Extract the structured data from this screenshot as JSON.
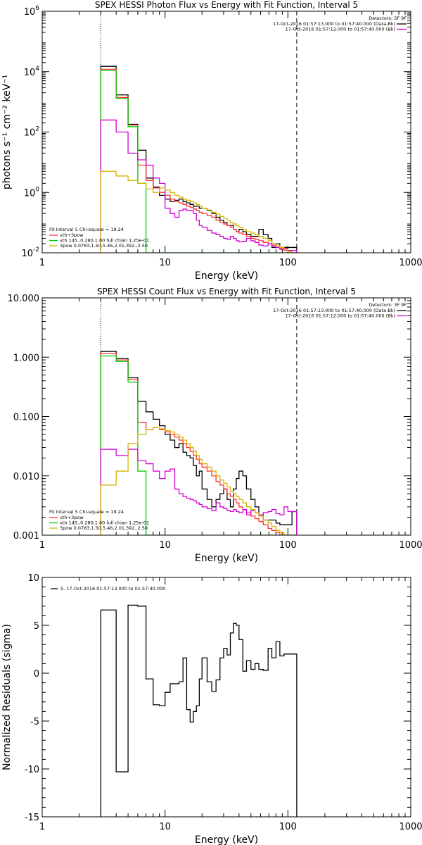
{
  "colors": {
    "black": "#000000",
    "red": "#ff3333",
    "green": "#00cc00",
    "magenta": "#d400d4",
    "yellow": "#d4b400"
  },
  "chart_data": [
    {
      "type": "line",
      "title": "SPEX HESSI Photon Flux vs Energy with Fit Function, Interval 5",
      "xlabel": "Energy (keV)",
      "ylabel": "photons s⁻¹ cm⁻² keV⁻¹",
      "xscale": "log",
      "yscale": "log",
      "xlim": [
        1,
        1000
      ],
      "ylim": [
        0.01,
        1000000
      ],
      "xticks": [
        "1",
        "10",
        "100",
        "1000"
      ],
      "yticks": [
        {
          "v": 0.01,
          "b": "10",
          "e": "-2"
        },
        {
          "v": 1,
          "b": "10",
          "e": "0"
        },
        {
          "v": 100,
          "b": "10",
          "e": "2"
        },
        {
          "v": 10000,
          "b": "10",
          "e": "4"
        },
        {
          "v": 1000000,
          "b": "10",
          "e": "6"
        }
      ],
      "vlines": [
        {
          "x": 3,
          "style": "dotted"
        },
        {
          "x": 118,
          "style": "dashed"
        }
      ],
      "legend_topright": {
        "title": "Detectors: 3F 9F",
        "rows": [
          {
            "text": "17-Oct-2016 01:57:13.000 to 01:57:40.000 (Data-Bk)",
            "color": "black"
          },
          {
            "text": "17-Oct-2016 01:57:12.000 to 01:57:40.000 (Bk)",
            "color": "magenta"
          }
        ]
      },
      "legend_bottomleft": {
        "title": "Fit Interval 5   Chi-square = 19.24",
        "rows": [
          {
            "text": "vth+3pow",
            "color": "red"
          },
          {
            "text": "vth 145.,0.280,1.00  full chian 1.25e-01",
            "color": "green"
          },
          {
            "text": "3pow 0.0783,1.50,5.46,2.01,392.,2.50",
            "color": "yellow"
          }
        ]
      },
      "edges": [
        3,
        4,
        5,
        6,
        7,
        8,
        9,
        10,
        11,
        12,
        13,
        14,
        15,
        16,
        17,
        18,
        19,
        20,
        22,
        24,
        26,
        28,
        30,
        32,
        34,
        36,
        38,
        40,
        43,
        46,
        50,
        54,
        58,
        63,
        69,
        74,
        80,
        86,
        93,
        100,
        108,
        118
      ],
      "series": [
        {
          "name": "Data-Bk",
          "color": "black",
          "values": [
            15000,
            1700,
            180,
            25,
            3.0,
            1.5,
            0.8,
            0.6,
            0.5,
            0.55,
            0.6,
            0.5,
            0.45,
            0.4,
            0.35,
            0.35,
            0.3,
            0.3,
            0.25,
            0.2,
            0.15,
            0.12,
            0.1,
            0.08,
            0.08,
            0.06,
            0.05,
            0.06,
            0.05,
            0.04,
            0.035,
            0.035,
            0.06,
            0.04,
            0.03,
            0.015,
            0.02,
            0.015,
            0.015,
            0.015,
            0.015
          ]
        },
        {
          "name": "vth+3pow",
          "color": "red",
          "values": [
            12000,
            1400,
            170,
            8,
            2.5,
            1.4,
            1.0,
            0.8,
            0.6,
            0.5,
            0.45,
            0.4,
            0.35,
            0.32,
            0.28,
            0.25,
            0.22,
            0.2,
            0.17,
            0.15,
            0.12,
            0.1,
            0.09,
            0.08,
            0.07,
            0.06,
            0.05,
            0.045,
            0.04,
            0.035,
            0.03,
            0.028,
            0.025,
            0.022,
            0.02,
            0.018,
            0.015,
            0.014,
            0.012,
            0.011,
            0.01
          ]
        },
        {
          "name": "vth",
          "color": "green",
          "values": [
            11000,
            1300,
            150,
            2.0,
            0.01,
            0.01,
            0.01,
            0.01,
            0.01,
            0.01,
            0.01,
            0.01,
            0.01,
            0.01,
            0.01,
            0.01,
            0.01,
            0.01,
            0.01,
            0.01,
            0.01,
            0.01,
            0.01,
            0.01,
            0.01,
            0.01,
            0.01,
            0.01,
            0.01,
            0.01,
            0.01,
            0.01,
            0.01,
            0.01,
            0.01,
            0.01,
            0.01,
            0.01,
            0.01,
            0.01,
            0.01
          ]
        },
        {
          "name": "Bk",
          "color": "magenta",
          "values": [
            250,
            100,
            20,
            12,
            8,
            3,
            2,
            0.3,
            0.2,
            0.15,
            0.25,
            0.28,
            0.25,
            0.25,
            0.2,
            0.12,
            0.08,
            0.07,
            0.055,
            0.045,
            0.04,
            0.035,
            0.03,
            0.028,
            0.035,
            0.03,
            0.025,
            0.023,
            0.024,
            0.03,
            0.025,
            0.022,
            0.018,
            0.017,
            0.02,
            0.016,
            0.015,
            0.013,
            0.014,
            0.012,
            0.012
          ]
        },
        {
          "name": "3pow",
          "color": "yellow",
          "values": [
            5,
            3.5,
            2.5,
            2.0,
            1.3,
            1.0,
            1.4,
            1.2,
            1.0,
            0.8,
            0.7,
            0.6,
            0.55,
            0.5,
            0.45,
            0.4,
            0.35,
            0.3,
            0.26,
            0.22,
            0.19,
            0.16,
            0.14,
            0.12,
            0.1,
            0.09,
            0.08,
            0.07,
            0.06,
            0.05,
            0.045,
            0.04,
            0.035,
            0.03,
            0.025,
            0.02,
            0.017,
            0.015,
            0.013,
            0.011,
            0.01
          ]
        }
      ]
    },
    {
      "type": "line",
      "title": "SPEX HESSI Count Flux vs Energy with Fit Function, Interval 5",
      "xlabel": "Energy (keV)",
      "ylabel": "",
      "xscale": "log",
      "yscale": "log",
      "xlim": [
        1,
        1000
      ],
      "ylim": [
        0.001,
        10
      ],
      "xticks": [
        "1",
        "10",
        "100",
        "1000"
      ],
      "yticks": [
        {
          "v": 0.001,
          "t": "0.001"
        },
        {
          "v": 0.01,
          "t": "0.010"
        },
        {
          "v": 0.1,
          "t": "0.100"
        },
        {
          "v": 1,
          "t": "1.000"
        },
        {
          "v": 10,
          "t": "10.000"
        }
      ],
      "vlines": [
        {
          "x": 3,
          "style": "dotted"
        },
        {
          "x": 118,
          "style": "dashed"
        }
      ],
      "legend_topright": {
        "title": "Detectors: 3F 9F",
        "rows": [
          {
            "text": "17-Oct-2016 01:57:13.000 to 01:57:40.000 (Data-Bk)",
            "color": "black"
          },
          {
            "text": "17-Oct-2016 01:57:12.000 to 01:57:40.000 (Bk)",
            "color": "magenta"
          }
        ]
      },
      "legend_bottomleft": {
        "title": "Fit Interval 5   Chi-square = 19.24",
        "rows": [
          {
            "text": "vth+3pow",
            "color": "red"
          },
          {
            "text": "vth 145.,0.280,1.00  full chian 1.25e-01",
            "color": "green"
          },
          {
            "text": "3pow 0.0783,1.50,5.46,2.01,392.,2.50",
            "color": "yellow"
          }
        ]
      },
      "edges": [
        3,
        4,
        5,
        6,
        7,
        8,
        9,
        10,
        11,
        12,
        13,
        14,
        15,
        16,
        17,
        18,
        19,
        20,
        22,
        24,
        26,
        28,
        30,
        32,
        34,
        36,
        38,
        40,
        43,
        46,
        50,
        54,
        58,
        63,
        69,
        74,
        80,
        86,
        93,
        100,
        108,
        118
      ],
      "series": [
        {
          "name": "Data-Bk",
          "color": "black",
          "values": [
            1.25,
            0.95,
            0.45,
            0.18,
            0.12,
            0.09,
            0.07,
            0.05,
            0.04,
            0.03,
            0.035,
            0.025,
            0.022,
            0.02,
            0.015,
            0.01,
            0.012,
            0.006,
            0.004,
            0.003,
            0.004,
            0.005,
            0.006,
            0.004,
            0.003,
            0.006,
            0.009,
            0.012,
            0.01,
            0.006,
            0.004,
            0.003,
            0.0022,
            0.0018,
            0.0018,
            0.0018,
            0.0016,
            0.0015,
            0.0015,
            0.0015,
            0.0025
          ]
        },
        {
          "name": "vth+3pow",
          "color": "red",
          "values": [
            1.15,
            0.9,
            0.42,
            0.08,
            0.06,
            0.065,
            0.06,
            0.055,
            0.05,
            0.045,
            0.04,
            0.035,
            0.03,
            0.026,
            0.022,
            0.019,
            0.016,
            0.014,
            0.012,
            0.01,
            0.008,
            0.007,
            0.006,
            0.005,
            0.0045,
            0.004,
            0.0035,
            0.003,
            0.0027,
            0.0024,
            0.0021,
            0.0019,
            0.0017,
            0.0015,
            0.0013,
            0.0012,
            0.0011,
            0.001,
            0.001,
            0.001,
            0.001
          ]
        },
        {
          "name": "vth",
          "color": "green",
          "values": [
            1.05,
            0.85,
            0.38,
            0.012,
            0.001,
            0.001,
            0.001,
            0.001,
            0.001,
            0.001,
            0.001,
            0.001,
            0.001,
            0.001,
            0.001,
            0.001,
            0.001,
            0.001,
            0.001,
            0.001,
            0.001,
            0.001,
            0.001,
            0.001,
            0.001,
            0.001,
            0.001,
            0.001,
            0.001,
            0.001,
            0.001,
            0.001,
            0.001,
            0.001,
            0.001,
            0.001,
            0.001,
            0.001,
            0.001,
            0.001,
            0.001
          ]
        },
        {
          "name": "Bk",
          "color": "magenta",
          "values": [
            0.028,
            0.022,
            0.028,
            0.018,
            0.016,
            0.012,
            0.009,
            0.012,
            0.013,
            0.006,
            0.005,
            0.0045,
            0.0042,
            0.004,
            0.0038,
            0.0035,
            0.0033,
            0.003,
            0.0028,
            0.0026,
            0.0035,
            0.003,
            0.0028,
            0.0026,
            0.0025,
            0.0027,
            0.0025,
            0.0024,
            0.0027,
            0.0022,
            0.0026,
            0.0024,
            0.0022,
            0.0024,
            0.0025,
            0.0027,
            0.0023,
            0.0022,
            0.003,
            0.0025,
            0.0025
          ]
        },
        {
          "name": "3pow",
          "color": "yellow",
          "values": [
            0.007,
            0.012,
            0.035,
            0.05,
            0.06,
            0.065,
            0.062,
            0.058,
            0.055,
            0.05,
            0.045,
            0.04,
            0.035,
            0.03,
            0.026,
            0.022,
            0.019,
            0.016,
            0.014,
            0.012,
            0.01,
            0.0085,
            0.0075,
            0.0065,
            0.0055,
            0.005,
            0.0045,
            0.004,
            0.0035,
            0.003,
            0.0027,
            0.0024,
            0.0021,
            0.0018,
            0.0016,
            0.0014,
            0.0012,
            0.0011,
            0.001,
            0.001,
            0.001
          ]
        }
      ]
    },
    {
      "type": "line",
      "title": "",
      "xlabel": "Energy (keV)",
      "ylabel": "Normalized Residuals (sigma)",
      "xscale": "log",
      "yscale": "linear",
      "xlim": [
        1,
        1000
      ],
      "ylim": [
        -15,
        10
      ],
      "xticks": [
        "1",
        "10",
        "100",
        "1000"
      ],
      "yticks": [
        {
          "v": -15,
          "t": "-15"
        },
        {
          "v": -10,
          "t": "-10"
        },
        {
          "v": -5,
          "t": "-5"
        },
        {
          "v": 0,
          "t": "0"
        },
        {
          "v": 5,
          "t": "5"
        },
        {
          "v": 10,
          "t": "10"
        }
      ],
      "legend_topleft": {
        "rows": [
          {
            "text": "5. 17-Oct-2016 01:57:13.000 to 01:57:40.000",
            "color": "black"
          }
        ]
      },
      "edges": [
        3,
        4,
        5,
        6,
        7,
        8,
        9,
        10,
        11,
        12,
        13,
        14,
        15,
        16,
        17,
        18,
        19,
        20,
        22,
        24,
        26,
        28,
        30,
        32,
        34,
        36,
        38,
        40,
        43,
        46,
        50,
        54,
        58,
        63,
        69,
        74,
        80,
        86,
        93,
        100,
        108,
        118
      ],
      "series": [
        {
          "name": "",
          "color": "black",
          "values": [
            6.6,
            -10.3,
            7.1,
            7.0,
            -0.6,
            -3.3,
            -3.4,
            -2.0,
            -1.1,
            -1.1,
            -0.9,
            1.6,
            -3.8,
            -5.1,
            -4.0,
            -3.4,
            -0.6,
            1.6,
            -0.9,
            -1.9,
            -0.7,
            1.6,
            2.6,
            1.9,
            4.2,
            5.2,
            5.0,
            3.5,
            0.2,
            1.3,
            0.4,
            1.0,
            0.4,
            0.3,
            2.6,
            1.6,
            3.3,
            1.8,
            2.0,
            2.0,
            2.0
          ]
        }
      ]
    }
  ]
}
